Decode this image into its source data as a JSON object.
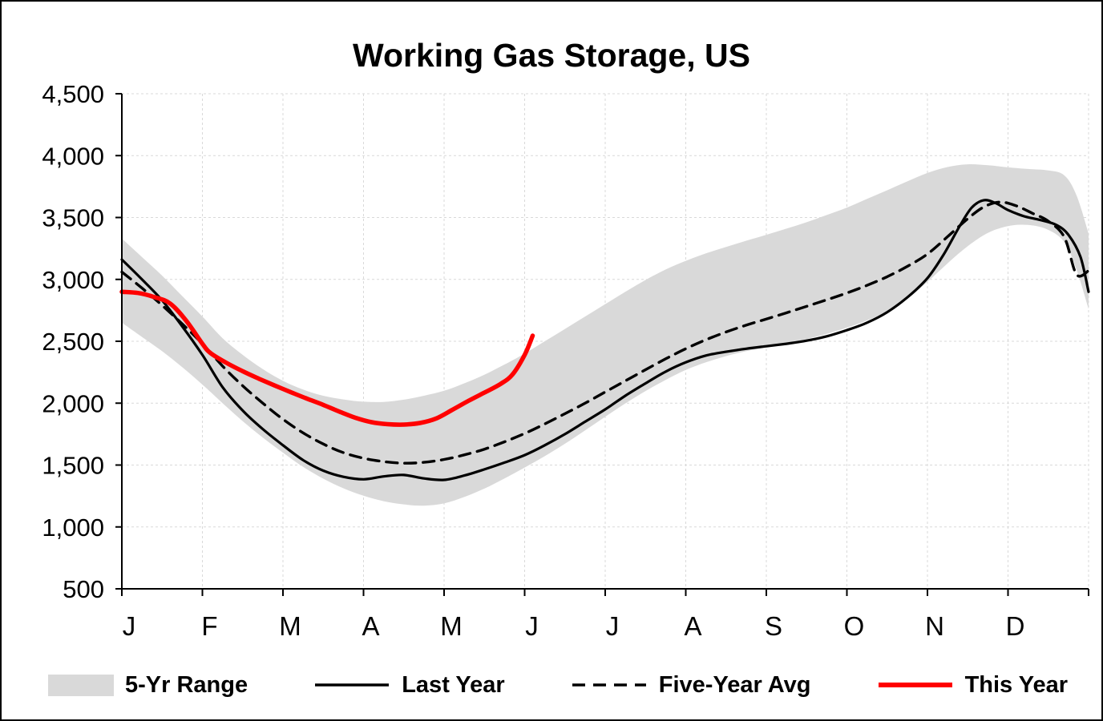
{
  "page": {
    "background": "#ffffff",
    "border_color": "#000000"
  },
  "chart_data": {
    "type": "line",
    "title": "Working Gas Storage, US",
    "x_labels": [
      "J",
      "F",
      "M",
      "A",
      "M",
      "J",
      "J",
      "A",
      "S",
      "O",
      "N",
      "D"
    ],
    "y_ticks": [
      500,
      1000,
      1500,
      2000,
      2500,
      3000,
      3500,
      4000,
      4500
    ],
    "y_tick_labels": [
      "500",
      "1,000",
      "1,500",
      "2,000",
      "2,500",
      "3,000",
      "3,500",
      "4,000",
      "4,500"
    ],
    "xlim": [
      0,
      12
    ],
    "ylim": [
      500,
      4500
    ],
    "grid": true,
    "legend_position": "bottom",
    "colors": {
      "band": "#d9d9d9",
      "grid": "#d9d9d9",
      "axis": "#000000",
      "last_year": "#000000",
      "five_year_avg": "#000000",
      "this_year": "#ff0000"
    },
    "band": {
      "name": "5-Yr Range",
      "upper": [
        [
          0,
          3330
        ],
        [
          0.25,
          3180
        ],
        [
          0.5,
          3030
        ],
        [
          0.75,
          2865
        ],
        [
          1,
          2700
        ],
        [
          1.25,
          2525
        ],
        [
          1.5,
          2390
        ],
        [
          1.75,
          2275
        ],
        [
          2,
          2180
        ],
        [
          2.25,
          2110
        ],
        [
          2.5,
          2060
        ],
        [
          2.75,
          2030
        ],
        [
          3,
          2012
        ],
        [
          3.25,
          2010
        ],
        [
          3.5,
          2028
        ],
        [
          3.75,
          2060
        ],
        [
          4,
          2100
        ],
        [
          4.25,
          2160
        ],
        [
          4.5,
          2230
        ],
        [
          4.75,
          2312
        ],
        [
          5,
          2400
        ],
        [
          5.25,
          2500
        ],
        [
          5.5,
          2600
        ],
        [
          5.75,
          2700
        ],
        [
          6,
          2800
        ],
        [
          6.25,
          2900
        ],
        [
          6.5,
          2995
        ],
        [
          6.75,
          3080
        ],
        [
          7,
          3150
        ],
        [
          7.25,
          3210
        ],
        [
          7.5,
          3262
        ],
        [
          7.75,
          3312
        ],
        [
          8,
          3360
        ],
        [
          8.25,
          3410
        ],
        [
          8.5,
          3462
        ],
        [
          8.75,
          3520
        ],
        [
          9,
          3580
        ],
        [
          9.25,
          3650
        ],
        [
          9.5,
          3720
        ],
        [
          9.75,
          3792
        ],
        [
          10,
          3860
        ],
        [
          10.25,
          3908
        ],
        [
          10.5,
          3930
        ],
        [
          10.75,
          3922
        ],
        [
          11,
          3905
        ],
        [
          11.25,
          3892
        ],
        [
          11.5,
          3880
        ],
        [
          11.7,
          3840
        ],
        [
          11.85,
          3680
        ],
        [
          12,
          3370
        ]
      ],
      "lower": [
        [
          0,
          2650
        ],
        [
          0.25,
          2535
        ],
        [
          0.5,
          2420
        ],
        [
          0.75,
          2290
        ],
        [
          1,
          2150
        ],
        [
          1.25,
          2000
        ],
        [
          1.5,
          1855
        ],
        [
          1.75,
          1722
        ],
        [
          2,
          1600
        ],
        [
          2.25,
          1485
        ],
        [
          2.5,
          1390
        ],
        [
          2.75,
          1312
        ],
        [
          3,
          1252
        ],
        [
          3.25,
          1208
        ],
        [
          3.5,
          1182
        ],
        [
          3.75,
          1172
        ],
        [
          4,
          1190
        ],
        [
          4.25,
          1242
        ],
        [
          4.5,
          1310
        ],
        [
          4.75,
          1392
        ],
        [
          5,
          1480
        ],
        [
          5.25,
          1572
        ],
        [
          5.5,
          1672
        ],
        [
          5.75,
          1780
        ],
        [
          6,
          1890
        ],
        [
          6.25,
          1998
        ],
        [
          6.5,
          2098
        ],
        [
          6.75,
          2188
        ],
        [
          7,
          2268
        ],
        [
          7.25,
          2330
        ],
        [
          7.5,
          2380
        ],
        [
          7.75,
          2420
        ],
        [
          8,
          2452
        ],
        [
          8.25,
          2482
        ],
        [
          8.5,
          2518
        ],
        [
          8.75,
          2560
        ],
        [
          9,
          2610
        ],
        [
          9.25,
          2668
        ],
        [
          9.5,
          2740
        ],
        [
          9.75,
          2842
        ],
        [
          10,
          2980
        ],
        [
          10.25,
          3130
        ],
        [
          10.5,
          3268
        ],
        [
          10.75,
          3375
        ],
        [
          11,
          3430
        ],
        [
          11.25,
          3440
        ],
        [
          11.5,
          3400
        ],
        [
          11.7,
          3300
        ],
        [
          11.85,
          3080
        ],
        [
          12,
          2760
        ]
      ]
    },
    "series": [
      {
        "name": "Last Year",
        "color": "#000000",
        "width": 3.2,
        "dash": null,
        "points": [
          [
            0,
            3160
          ],
          [
            0.25,
            3000
          ],
          [
            0.5,
            2830
          ],
          [
            0.75,
            2620
          ],
          [
            1,
            2390
          ],
          [
            1.25,
            2130
          ],
          [
            1.5,
            1940
          ],
          [
            1.75,
            1790
          ],
          [
            2,
            1660
          ],
          [
            2.25,
            1540
          ],
          [
            2.5,
            1455
          ],
          [
            2.75,
            1405
          ],
          [
            3,
            1385
          ],
          [
            3.25,
            1408
          ],
          [
            3.5,
            1420
          ],
          [
            3.75,
            1392
          ],
          [
            4,
            1380
          ],
          [
            4.25,
            1415
          ],
          [
            4.5,
            1465
          ],
          [
            4.75,
            1520
          ],
          [
            5,
            1580
          ],
          [
            5.25,
            1660
          ],
          [
            5.5,
            1750
          ],
          [
            5.75,
            1850
          ],
          [
            6,
            1950
          ],
          [
            6.25,
            2060
          ],
          [
            6.5,
            2160
          ],
          [
            6.75,
            2255
          ],
          [
            7,
            2330
          ],
          [
            7.25,
            2385
          ],
          [
            7.5,
            2415
          ],
          [
            7.75,
            2440
          ],
          [
            8,
            2460
          ],
          [
            8.25,
            2480
          ],
          [
            8.5,
            2505
          ],
          [
            8.75,
            2540
          ],
          [
            9,
            2590
          ],
          [
            9.25,
            2650
          ],
          [
            9.5,
            2735
          ],
          [
            9.75,
            2855
          ],
          [
            10,
            3010
          ],
          [
            10.2,
            3200
          ],
          [
            10.4,
            3430
          ],
          [
            10.55,
            3580
          ],
          [
            10.7,
            3640
          ],
          [
            10.85,
            3615
          ],
          [
            11,
            3560
          ],
          [
            11.2,
            3510
          ],
          [
            11.4,
            3480
          ],
          [
            11.6,
            3440
          ],
          [
            11.75,
            3360
          ],
          [
            11.9,
            3180
          ],
          [
            12,
            2900
          ]
        ]
      },
      {
        "name": "Five-Year Avg",
        "color": "#000000",
        "width": 3.4,
        "dash": "14 9",
        "points": [
          [
            0,
            3060
          ],
          [
            0.25,
            2930
          ],
          [
            0.5,
            2790
          ],
          [
            0.75,
            2640
          ],
          [
            1,
            2480
          ],
          [
            1.25,
            2300
          ],
          [
            1.5,
            2140
          ],
          [
            1.75,
            2000
          ],
          [
            2,
            1870
          ],
          [
            2.25,
            1760
          ],
          [
            2.5,
            1670
          ],
          [
            2.75,
            1600
          ],
          [
            3,
            1555
          ],
          [
            3.25,
            1528
          ],
          [
            3.5,
            1515
          ],
          [
            3.75,
            1522
          ],
          [
            4,
            1545
          ],
          [
            4.25,
            1582
          ],
          [
            4.5,
            1628
          ],
          [
            4.75,
            1688
          ],
          [
            5,
            1755
          ],
          [
            5.25,
            1832
          ],
          [
            5.5,
            1915
          ],
          [
            5.75,
            2000
          ],
          [
            6,
            2090
          ],
          [
            6.25,
            2180
          ],
          [
            6.5,
            2270
          ],
          [
            6.75,
            2358
          ],
          [
            7,
            2440
          ],
          [
            7.25,
            2512
          ],
          [
            7.5,
            2575
          ],
          [
            7.75,
            2630
          ],
          [
            8,
            2680
          ],
          [
            8.25,
            2730
          ],
          [
            8.5,
            2782
          ],
          [
            8.75,
            2835
          ],
          [
            9,
            2890
          ],
          [
            9.25,
            2952
          ],
          [
            9.5,
            3022
          ],
          [
            9.75,
            3105
          ],
          [
            10,
            3205
          ],
          [
            10.25,
            3345
          ],
          [
            10.5,
            3490
          ],
          [
            10.7,
            3585
          ],
          [
            10.9,
            3625
          ],
          [
            11.1,
            3595
          ],
          [
            11.3,
            3535
          ],
          [
            11.5,
            3470
          ],
          [
            11.7,
            3340
          ],
          [
            11.85,
            3040
          ],
          [
            12,
            3070
          ]
        ]
      },
      {
        "name": "This Year",
        "color": "#ff0000",
        "width": 5.5,
        "dash": null,
        "points": [
          [
            0,
            2900
          ],
          [
            0.2,
            2890
          ],
          [
            0.4,
            2858
          ],
          [
            0.6,
            2805
          ],
          [
            0.8,
            2665
          ],
          [
            1,
            2480
          ],
          [
            1.1,
            2405
          ],
          [
            1.3,
            2325
          ],
          [
            1.5,
            2258
          ],
          [
            1.7,
            2198
          ],
          [
            1.9,
            2142
          ],
          [
            2.1,
            2088
          ],
          [
            2.3,
            2036
          ],
          [
            2.5,
            1986
          ],
          [
            2.7,
            1932
          ],
          [
            2.9,
            1882
          ],
          [
            3.1,
            1846
          ],
          [
            3.3,
            1830
          ],
          [
            3.5,
            1827
          ],
          [
            3.7,
            1840
          ],
          [
            3.9,
            1876
          ],
          [
            4.1,
            1945
          ],
          [
            4.3,
            2018
          ],
          [
            4.5,
            2085
          ],
          [
            4.7,
            2155
          ],
          [
            4.85,
            2232
          ],
          [
            5,
            2390
          ],
          [
            5.1,
            2545
          ]
        ]
      }
    ],
    "legend": [
      {
        "label": "5-Yr Range",
        "type": "band"
      },
      {
        "label": "Last Year",
        "type": "solid-line"
      },
      {
        "label": "Five-Year Avg",
        "type": "dashed-line"
      },
      {
        "label": "This Year",
        "type": "red-line"
      }
    ]
  }
}
